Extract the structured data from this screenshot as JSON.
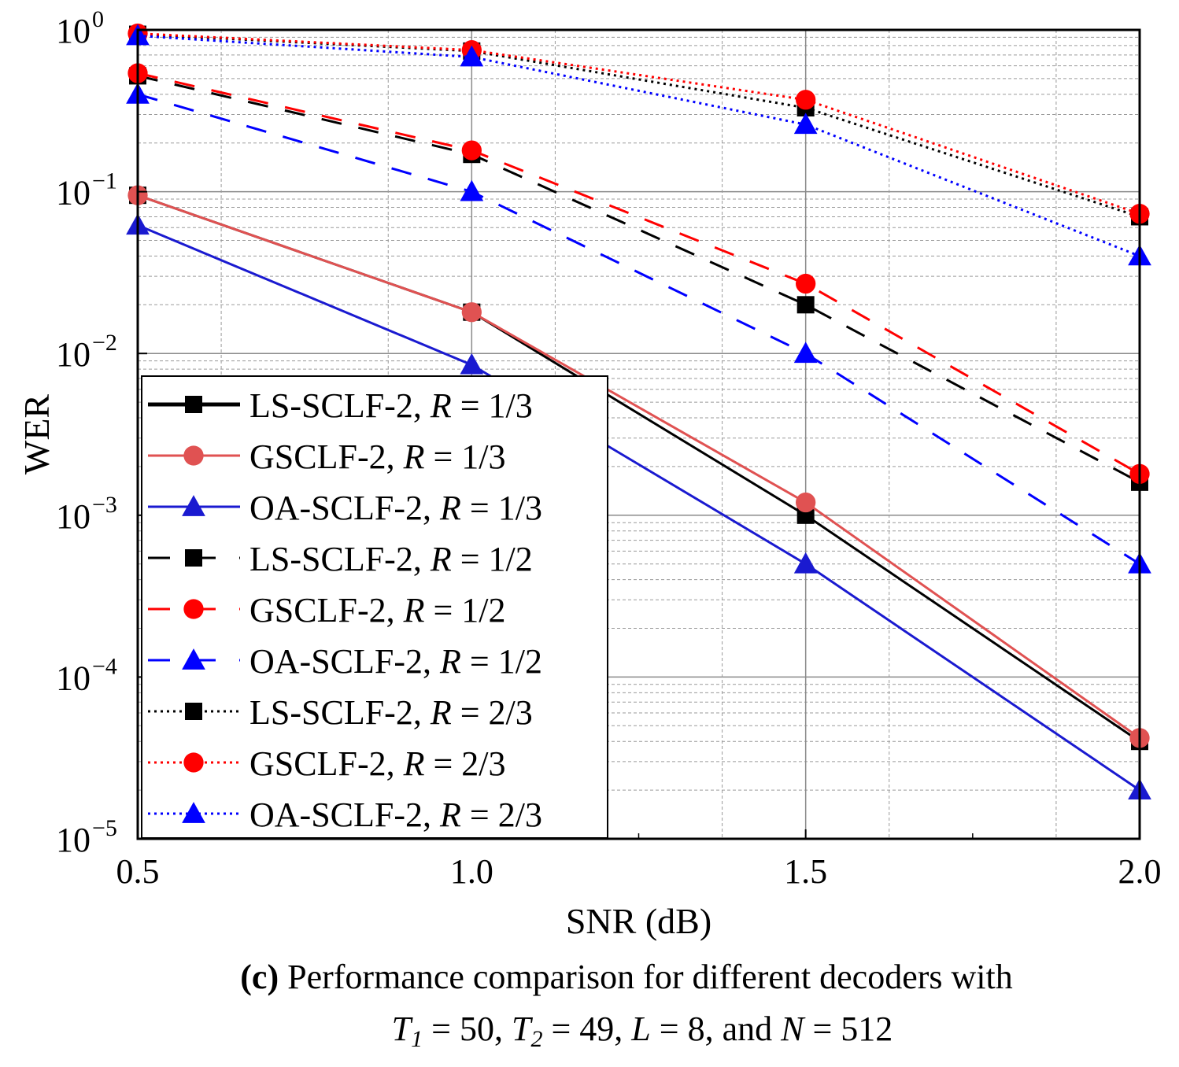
{
  "chart_data": {
    "type": "line",
    "title": "",
    "xlabel": "SNR (dB)",
    "ylabel": "WER",
    "xscale": "linear",
    "yscale": "log",
    "xlim": [
      0.5,
      2.0
    ],
    "ylim": [
      1e-05,
      1
    ],
    "grid": true,
    "x_ticks": [
      0.5,
      1.0,
      1.5,
      2.0
    ],
    "x_tick_labels": [
      "0.5",
      "1.0",
      "1.5",
      "2.0"
    ],
    "y_ticks": [
      1e-05,
      0.0001,
      0.001,
      0.01,
      0.1,
      1
    ],
    "y_tick_labels": [
      {
        "base": "10",
        "exp": "−5"
      },
      {
        "base": "10",
        "exp": "−4"
      },
      {
        "base": "10",
        "exp": "−3"
      },
      {
        "base": "10",
        "exp": "−2"
      },
      {
        "base": "10",
        "exp": "−1"
      },
      {
        "base": "10",
        "exp": "0"
      }
    ],
    "legend_position": "bottom-left",
    "x": [
      0.5,
      1.0,
      1.5,
      2.0
    ],
    "series": [
      {
        "name": "LS-SCLF-2, R = 1/3",
        "prefix": "LS-SCLF-2, ",
        "rate": "1/3",
        "color": "#000000",
        "dash": "solid",
        "marker": "square",
        "values": [
          0.095,
          0.018,
          0.001,
          4e-05
        ]
      },
      {
        "name": "GSCLF-2, R = 1/3",
        "prefix": "GSCLF-2, ",
        "rate": "1/3",
        "color": "#e05252",
        "dash": "solid",
        "marker": "circle",
        "values": [
          0.095,
          0.018,
          0.0012,
          4.2e-05
        ]
      },
      {
        "name": "OA-SCLF-2, R = 1/3",
        "prefix": "OA-SCLF-2, ",
        "rate": "1/3",
        "color": "#1a1ad0",
        "dash": "solid",
        "marker": "triangle",
        "values": [
          0.062,
          0.0085,
          0.0005,
          2e-05
        ]
      },
      {
        "name": "LS-SCLF-2, R = 1/2",
        "prefix": "LS-SCLF-2, ",
        "rate": "1/2",
        "color": "#000000",
        "dash": "dash",
        "marker": "square",
        "values": [
          0.52,
          0.17,
          0.02,
          0.0016
        ]
      },
      {
        "name": "GSCLF-2, R = 1/2",
        "prefix": "GSCLF-2, ",
        "rate": "1/2",
        "color": "#ff0000",
        "dash": "dash",
        "marker": "circle",
        "values": [
          0.54,
          0.18,
          0.027,
          0.0018
        ]
      },
      {
        "name": "OA-SCLF-2, R = 1/2",
        "prefix": "OA-SCLF-2, ",
        "rate": "1/2",
        "color": "#0000ff",
        "dash": "dash",
        "marker": "triangle",
        "values": [
          0.4,
          0.1,
          0.01,
          0.0005
        ]
      },
      {
        "name": "LS-SCLF-2, R = 2/3",
        "prefix": "LS-SCLF-2, ",
        "rate": "2/3",
        "color": "#000000",
        "dash": "dot",
        "marker": "square",
        "values": [
          0.94,
          0.74,
          0.33,
          0.07
        ]
      },
      {
        "name": "GSCLF-2, R = 2/3",
        "prefix": "GSCLF-2, ",
        "rate": "2/3",
        "color": "#ff0000",
        "dash": "dot",
        "marker": "circle",
        "values": [
          0.95,
          0.75,
          0.37,
          0.073
        ]
      },
      {
        "name": "OA-SCLF-2, R = 2/3",
        "prefix": "OA-SCLF-2, ",
        "rate": "2/3",
        "color": "#0000ff",
        "dash": "dot",
        "marker": "triangle",
        "values": [
          0.92,
          0.68,
          0.26,
          0.04
        ]
      }
    ],
    "legend_rate_symbol": "R",
    "legend_eq": " = ",
    "caption": {
      "line1_bold": "(c)",
      "line1_rest": " Performance comparison for different decoders with",
      "t1_sym": "T",
      "t1_sub": "1",
      "t1_val": " = 50, ",
      "t2_sym": "T",
      "t2_sub": "2",
      "t2_val": " = 49, ",
      "l_sym": "L",
      "l_val": " = 8, and ",
      "n_sym": "N",
      "n_val": " = 512"
    }
  }
}
